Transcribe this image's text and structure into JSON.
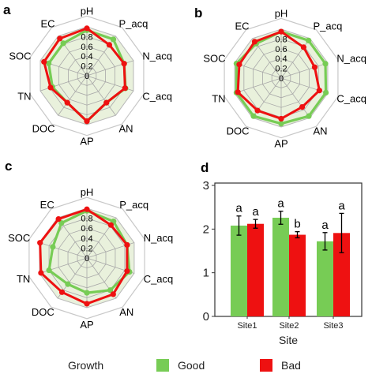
{
  "legend": {
    "title": "Growth",
    "items": [
      {
        "label": "Good",
        "color": "#77cc55"
      },
      {
        "label": "Bad",
        "color": "#ee1111"
      }
    ]
  },
  "chart_data": [
    {
      "type": "radar",
      "panel": "a",
      "axes": [
        "pH",
        "P_acq",
        "N_acq",
        "C_acq",
        "AN",
        "AP",
        "DOC",
        "TN",
        "SOC",
        "EC"
      ],
      "ring_labels": [
        "0.8",
        "0.6",
        "0.4",
        "0.2",
        "0"
      ],
      "range": [
        0,
        1
      ],
      "series": [
        {
          "name": "Good",
          "values": [
            0.93,
            0.92,
            0.8,
            0.83,
            0.68,
            0.93,
            0.68,
            0.74,
            0.82,
            0.82
          ]
        },
        {
          "name": "Bad",
          "values": [
            0.97,
            0.78,
            0.8,
            0.82,
            0.68,
            0.93,
            0.68,
            0.78,
            0.92,
            0.94
          ]
        }
      ]
    },
    {
      "type": "radar",
      "panel": "b",
      "axes": [
        "pH",
        "P_acq",
        "N_acq",
        "C_acq",
        "AN",
        "AP",
        "DOC",
        "TN",
        "SOC",
        "EC"
      ],
      "ring_labels": [
        "0.8",
        "0.6",
        "0.4",
        "0.2",
        "0"
      ],
      "range": [
        0,
        1
      ],
      "series": [
        {
          "name": "Good",
          "values": [
            0.95,
            0.95,
            0.95,
            0.96,
            0.96,
            0.93,
            0.96,
            0.96,
            0.96,
            0.87
          ]
        },
        {
          "name": "Bad",
          "values": [
            0.95,
            0.78,
            0.72,
            0.82,
            0.73,
            0.83,
            0.82,
            0.93,
            0.9,
            0.92
          ]
        }
      ]
    },
    {
      "type": "radar",
      "panel": "c",
      "axes": [
        "pH",
        "P_acq",
        "N_acq",
        "C_acq",
        "AN",
        "AP",
        "DOC",
        "TN",
        "SOC",
        "EC"
      ],
      "ring_labels": [
        "0.8",
        "0.6",
        "0.4",
        "0.2",
        "0"
      ],
      "range": [
        0,
        1
      ],
      "series": [
        {
          "name": "Good",
          "values": [
            0.95,
            0.91,
            0.85,
            0.9,
            0.8,
            0.7,
            0.65,
            0.8,
            0.72,
            0.87
          ]
        },
        {
          "name": "Bad",
          "values": [
            0.98,
            0.82,
            0.85,
            0.85,
            0.9,
            0.92,
            0.85,
            0.97,
            0.99,
            0.97
          ]
        }
      ]
    },
    {
      "type": "bar",
      "panel": "d",
      "categories": [
        "Site1",
        "Site2",
        "Site3"
      ],
      "xlabel": "Site",
      "ylabel": "",
      "ylim": [
        0,
        3
      ],
      "yticks": [
        0,
        1,
        2,
        3
      ],
      "series": [
        {
          "name": "Good",
          "values": [
            2.08,
            2.26,
            1.72
          ],
          "errors": [
            0.22,
            0.15,
            0.2
          ],
          "labels": [
            "a",
            "a",
            "a"
          ]
        },
        {
          "name": "Bad",
          "values": [
            2.12,
            1.87,
            1.91
          ],
          "errors": [
            0.1,
            0.07,
            0.45
          ],
          "labels": [
            "a",
            "b",
            "a"
          ]
        }
      ]
    }
  ]
}
